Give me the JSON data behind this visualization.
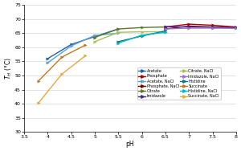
{
  "title": "",
  "xlabel": "pH",
  "ylabel": "$T_H$ (°C)",
  "xlim": [
    3.5,
    8.0
  ],
  "ylim": [
    30,
    75
  ],
  "xticks": [
    3.5,
    4.0,
    4.5,
    5.0,
    5.5,
    6.0,
    6.5,
    7.0,
    7.5,
    8.0
  ],
  "yticks": [
    30,
    35,
    40,
    45,
    50,
    55,
    60,
    65,
    70,
    75
  ],
  "series": [
    {
      "label": "Acetate",
      "color": "#2060B0",
      "x": [
        4.0,
        4.5,
        5.0,
        5.5
      ],
      "y": [
        56.0,
        61.0,
        63.8,
        66.5
      ]
    },
    {
      "label": "Acetate, NaCl",
      "color": "#5BA3D0",
      "x": [
        4.0,
        4.5,
        5.0,
        5.5
      ],
      "y": [
        54.5,
        60.5,
        64.2,
        65.0
      ]
    },
    {
      "label": "Citrate",
      "color": "#5A7A29",
      "x": [
        5.0,
        5.5,
        6.0,
        6.5
      ],
      "y": [
        63.5,
        66.5,
        67.0,
        67.2
      ]
    },
    {
      "label": "Citrate, NaCl",
      "color": "#A8C34F",
      "x": [
        5.0,
        5.5,
        6.0,
        6.5
      ],
      "y": [
        62.0,
        65.3,
        65.5,
        65.5
      ]
    },
    {
      "label": "Histidine",
      "color": "#007B8A",
      "x": [
        5.5,
        6.0,
        6.5
      ],
      "y": [
        62.0,
        64.0,
        65.8
      ]
    },
    {
      "label": "Histidine, NaCl",
      "color": "#00BBCC",
      "x": [
        5.5,
        6.0,
        6.5
      ],
      "y": [
        61.5,
        64.3,
        65.3
      ]
    },
    {
      "label": "Phosphate",
      "color": "#B00000",
      "x": [
        6.5,
        7.0,
        7.5,
        8.0
      ],
      "y": [
        67.2,
        68.2,
        67.8,
        67.2
      ]
    },
    {
      "label": "Phosphate, NaCl",
      "color": "#800000",
      "x": [
        6.5,
        7.0,
        7.5,
        8.0
      ],
      "y": [
        66.5,
        67.5,
        67.2,
        67.0
      ]
    },
    {
      "label": "Imidazole",
      "color": "#3D2C8D",
      "x": [
        6.5,
        7.0,
        7.5,
        8.0
      ],
      "y": [
        67.3,
        67.2,
        67.1,
        67.0
      ]
    },
    {
      "label": "Imidazole, NaCl",
      "color": "#9B72CF",
      "x": [
        6.5,
        7.0,
        7.5,
        8.0
      ],
      "y": [
        66.5,
        66.8,
        66.8,
        66.7
      ]
    },
    {
      "label": "Succinate",
      "color": "#C87820",
      "x": [
        3.8,
        4.3,
        4.8
      ],
      "y": [
        48.0,
        56.5,
        60.8
      ]
    },
    {
      "label": "Succinate, NaCl",
      "color": "#E8A840",
      "x": [
        3.8,
        4.3,
        4.8
      ],
      "y": [
        40.2,
        50.5,
        57.0
      ]
    }
  ],
  "legend_order_left": [
    "Acetate",
    "Acetate, NaCl",
    "Citrate",
    "Citrate, NaCl",
    "Histidine",
    "Histidine, NaCl"
  ],
  "legend_order_right": [
    "Phosphate",
    "Phosphate, NaCl",
    "Imidazole",
    "Imidazole, NaCl",
    "Succinate",
    "Succinate, NaCl"
  ],
  "bg_color": "#FFFFFF",
  "grid_color": "#CCCCCC"
}
